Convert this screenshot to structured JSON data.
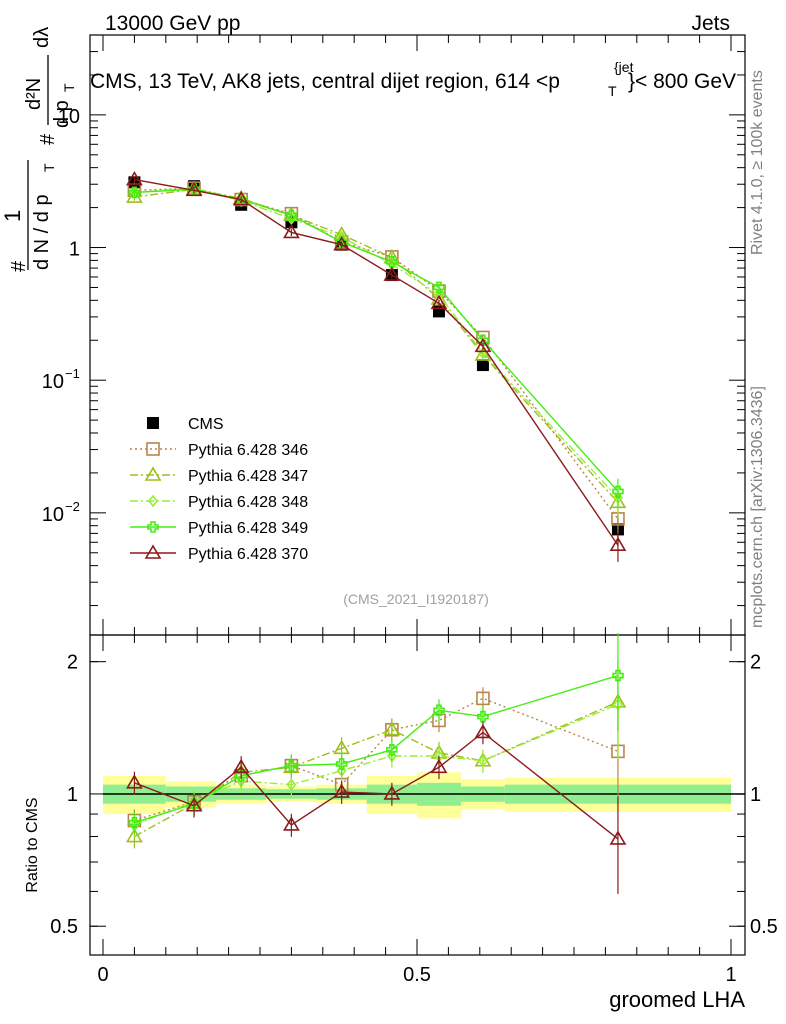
{
  "header": {
    "left": "13000 GeV pp",
    "right": "Jets",
    "title": "CMS, 13 TeV, AK8 jets, central dijet region, 614 <p",
    "title_sub": "T",
    "title_sup": "{jet",
    "title_end": "}< 800 GeV"
  },
  "side_labels": {
    "rivet": "Rivet 4.1.0, ≥ 100k events",
    "mcplots": "mcplots.cern.ch [arXiv:1306.3436]"
  },
  "watermark": "(CMS_2021_I1920187)",
  "ylabel_main": {
    "hash": "#",
    "one": "1",
    "denom": "d N / d p",
    "denom_sub": "T",
    "num": "d²N",
    "num_den": "d p",
    "num_den_sub": "T",
    "dlambda": "dλ"
  },
  "ylabel_ratio": "Ratio to CMS",
  "xlabel": "groomed LHA",
  "colors": {
    "cms": "#000000",
    "p346": "#b8864b",
    "p347": "#9cbf1a",
    "p348": "#99ee33",
    "p349": "#44ee11",
    "p370": "#8b1a1a",
    "band_inner": "#90ee90",
    "band_outer": "#ffff99"
  },
  "chart_data": [
    {
      "type": "scatter",
      "panel": "main",
      "yscale": "log",
      "xlim": [
        0,
        1
      ],
      "ylim": [
        0.0012,
        40
      ],
      "y_ticks": [
        {
          "value": 0.01,
          "base": "10",
          "exp": "−2"
        },
        {
          "value": 0.1,
          "base": "10",
          "exp": "−1"
        },
        {
          "value": 1,
          "base": "1",
          "exp": ""
        },
        {
          "value": 10,
          "base": "10",
          "exp": ""
        }
      ],
      "x": [
        0.05,
        0.145,
        0.22,
        0.3,
        0.38,
        0.46,
        0.535,
        0.605,
        0.82
      ],
      "series": [
        {
          "name": "CMS",
          "key": "cms",
          "marker": "square_filled",
          "line": "none",
          "values": [
            3.1,
            2.9,
            2.1,
            1.55,
            1.05,
            0.62,
            0.33,
            0.13,
            0.0075
          ]
        },
        {
          "name": "Pythia 6.428 346",
          "key": "p346",
          "marker": "square_open",
          "line": "dotted",
          "values": [
            2.7,
            2.8,
            2.3,
            1.8,
            1.1,
            0.85,
            0.47,
            0.21,
            0.009
          ]
        },
        {
          "name": "Pythia 6.428 347",
          "key": "p347",
          "marker": "triangle_open",
          "line": "dashdot",
          "values": [
            2.4,
            2.75,
            2.35,
            1.75,
            1.25,
            0.84,
            0.41,
            0.155,
            0.012
          ]
        },
        {
          "name": "Pythia 6.428 348",
          "key": "p348",
          "marker": "diamond_open",
          "line": "dashdot",
          "values": [
            2.6,
            2.8,
            2.25,
            1.65,
            1.2,
            0.75,
            0.44,
            0.16,
            0.013
          ]
        },
        {
          "name": "Pythia 6.428 349",
          "key": "p349",
          "marker": "cross_open",
          "line": "solid",
          "values": [
            2.6,
            2.75,
            2.3,
            1.75,
            1.1,
            0.78,
            0.5,
            0.2,
            0.0145
          ]
        },
        {
          "name": "Pythia 6.428 370",
          "key": "p370",
          "marker": "triangle_open",
          "line": "solid",
          "values": [
            3.25,
            2.7,
            2.3,
            1.3,
            1.05,
            0.62,
            0.38,
            0.18,
            0.0057
          ]
        }
      ]
    },
    {
      "type": "scatter",
      "panel": "ratio",
      "yscale": "log",
      "xlim": [
        0,
        1
      ],
      "ylim": [
        0.43,
        2.3
      ],
      "ylabel": "Ratio to CMS",
      "xlabel": "groomed LHA",
      "y_ticks": [
        0.5,
        1,
        2
      ],
      "x_ticks": [
        0,
        0.5,
        1
      ],
      "band_edges": [
        0,
        0.1,
        0.18,
        0.26,
        0.34,
        0.42,
        0.5,
        0.57,
        0.64,
        1
      ],
      "band_inner_half": [
        0.05,
        0.04,
        0.03,
        0.025,
        0.03,
        0.05,
        0.06,
        0.04,
        0.05
      ],
      "band_outer_half": [
        0.1,
        0.07,
        0.05,
        0.04,
        0.05,
        0.1,
        0.12,
        0.08,
        0.09
      ],
      "x": [
        0.05,
        0.145,
        0.22,
        0.3,
        0.38,
        0.46,
        0.535,
        0.605,
        0.82
      ],
      "series": [
        {
          "name": "Pythia 6.428 346",
          "key": "p346",
          "marker": "square_open",
          "line": "dotted",
          "values": [
            0.87,
            0.96,
            1.1,
            1.16,
            1.05,
            1.4,
            1.47,
            1.65,
            1.25
          ]
        },
        {
          "name": "Pythia 6.428 347",
          "key": "p347",
          "marker": "triangle_open",
          "line": "dashdot",
          "values": [
            0.8,
            0.95,
            1.12,
            1.15,
            1.27,
            1.4,
            1.24,
            1.19,
            1.62
          ]
        },
        {
          "name": "Pythia 6.428 348",
          "key": "p348",
          "marker": "diamond_open",
          "line": "dashdot",
          "values": [
            0.85,
            0.96,
            1.07,
            1.05,
            1.13,
            1.22,
            1.22,
            1.19,
            1.6
          ]
        },
        {
          "name": "Pythia 6.428 349",
          "key": "p349",
          "marker": "cross_open",
          "line": "solid",
          "values": [
            0.86,
            0.95,
            1.1,
            1.16,
            1.17,
            1.26,
            1.55,
            1.5,
            1.86
          ]
        },
        {
          "name": "Pythia 6.428 370",
          "key": "p370",
          "marker": "triangle_open",
          "line": "solid",
          "values": [
            1.06,
            0.94,
            1.15,
            0.85,
            1.01,
            1.0,
            1.15,
            1.38,
            0.79
          ]
        }
      ]
    }
  ]
}
